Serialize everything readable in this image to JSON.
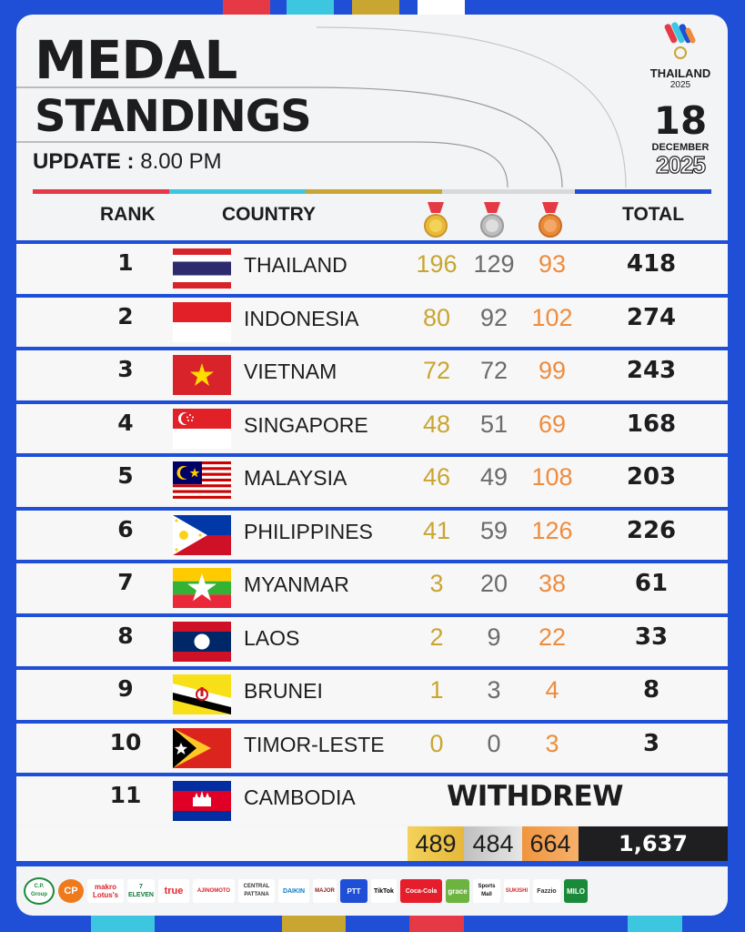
{
  "header": {
    "title_line1": "MEDAL",
    "title_line2": "STANDINGS",
    "update_label": "UPDATE :",
    "update_time": "8.00 PM",
    "logo_name": "THAILAND",
    "logo_year": "2025",
    "date_day": "18",
    "date_month": "DECEMBER",
    "date_year": "2025"
  },
  "columns": {
    "rank": "RANK",
    "country": "COUNTRY",
    "gold_icon": "gold-medal-icon",
    "silver_icon": "silver-medal-icon",
    "bronze_icon": "bronze-medal-icon",
    "total": "TOTAL"
  },
  "rows": [
    {
      "rank": "1",
      "country": "THAILAND",
      "gold": "196",
      "silver": "129",
      "bronze": "93",
      "total": "418"
    },
    {
      "rank": "2",
      "country": "INDONESIA",
      "gold": "80",
      "silver": "92",
      "bronze": "102",
      "total": "274"
    },
    {
      "rank": "3",
      "country": "VIETNAM",
      "gold": "72",
      "silver": "72",
      "bronze": "99",
      "total": "243"
    },
    {
      "rank": "4",
      "country": "SINGAPORE",
      "gold": "48",
      "silver": "51",
      "bronze": "69",
      "total": "168"
    },
    {
      "rank": "5",
      "country": "MALAYSIA",
      "gold": "46",
      "silver": "49",
      "bronze": "108",
      "total": "203"
    },
    {
      "rank": "6",
      "country": "PHILIPPINES",
      "gold": "41",
      "silver": "59",
      "bronze": "126",
      "total": "226"
    },
    {
      "rank": "7",
      "country": "MYANMAR",
      "gold": "3",
      "silver": "20",
      "bronze": "38",
      "total": "61"
    },
    {
      "rank": "8",
      "country": "LAOS",
      "gold": "2",
      "silver": "9",
      "bronze": "22",
      "total": "33"
    },
    {
      "rank": "9",
      "country": "BRUNEI",
      "gold": "1",
      "silver": "3",
      "bronze": "4",
      "total": "8"
    },
    {
      "rank": "10",
      "country": "TIMOR-LESTE",
      "gold": "0",
      "silver": "0",
      "bronze": "3",
      "total": "3"
    },
    {
      "rank": "11",
      "country": "CAMBODIA",
      "status": "WITHDREW"
    }
  ],
  "totals": {
    "gold": "489",
    "silver": "484",
    "bronze": "664",
    "total": "1,637"
  },
  "sponsors": [
    "C.P. Group",
    "CP",
    "makro Lotus's",
    "7 ELEVEN",
    "true",
    "AJINOMOTO",
    "CENTRAL PATTANA",
    "DAIKIN",
    "MAJOR",
    "PTT",
    "TikTok",
    "Coca-Cola",
    "grace",
    "Sports Mall",
    "SUKISHI",
    "Fazzio",
    "MILO"
  ],
  "colors": {
    "blue": "#1e4fd6",
    "red": "#e63946",
    "cyan": "#3cc6e0",
    "gold": "#c9a531",
    "silver": "#6b6b6b",
    "bronze": "#ee8c3e",
    "dark": "#1d1d1f"
  }
}
